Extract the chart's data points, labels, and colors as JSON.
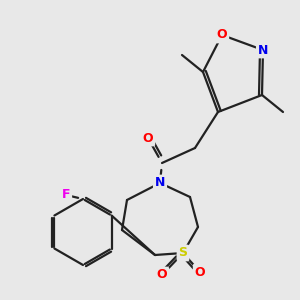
{
  "background_color": "#e8e8e8",
  "bond_color": "#222222",
  "atom_colors": {
    "O": "#ff0000",
    "N": "#0000ee",
    "S": "#cccc00",
    "F": "#ee00ee",
    "C": "#222222"
  },
  "figsize": [
    3.0,
    3.0
  ],
  "dpi": 100
}
